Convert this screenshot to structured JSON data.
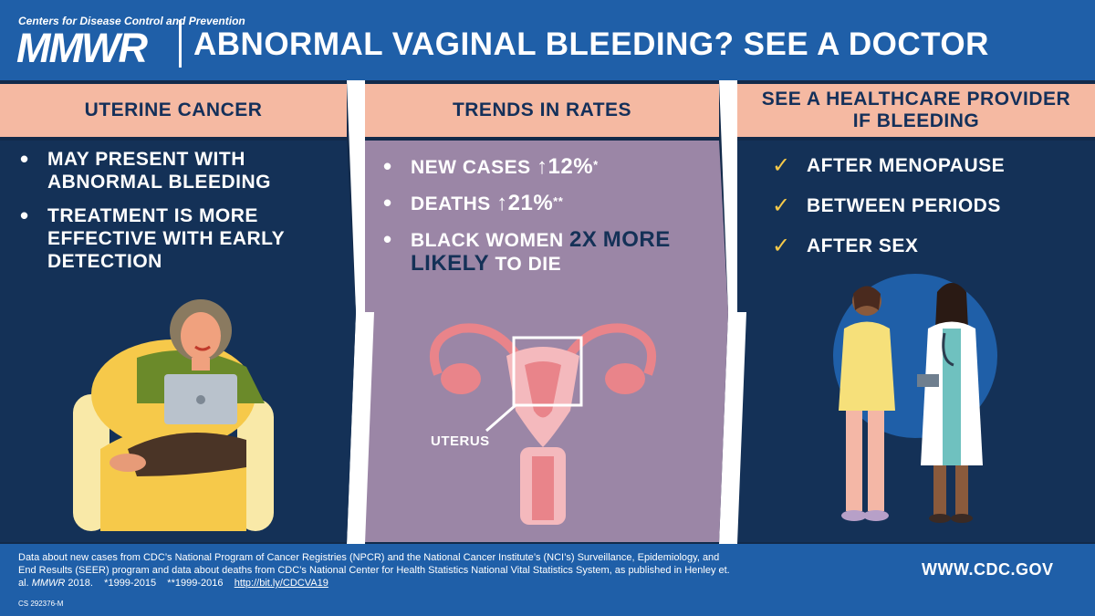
{
  "header": {
    "org": "Centers for Disease Control and Prevention",
    "logo": "MMWR",
    "title": "ABNORMAL VAGINAL BLEEDING? SEE A DOCTOR"
  },
  "panels": [
    {
      "heading": "UTERINE CANCER",
      "bullets": [
        "MAY PRESENT WITH ABNORMAL BLEEDING",
        "TREATMENT IS MORE EFFECTIVE WITH EARLY DETECTION"
      ]
    },
    {
      "heading": "TRENDS IN RATES",
      "bullets": [
        {
          "text": "NEW CASES",
          "arrow": "↑",
          "value": "12%",
          "note": "*"
        },
        {
          "text": "DEATHS",
          "arrow": "↑",
          "value": "21%",
          "note": "**"
        },
        {
          "text_a": "BLACK WOMEN",
          "emph_a": "2X",
          "emph_b": "MORE LIKELY",
          "text_b": "TO DIE"
        }
      ],
      "illustration_label": "UTERUS"
    },
    {
      "heading": "SEE A HEALTHCARE PROVIDER IF BLEEDING",
      "checks": [
        "AFTER MENOPAUSE",
        "BETWEEN PERIODS",
        "AFTER SEX"
      ]
    }
  ],
  "footer": {
    "source_1": "Data about new cases from CDC’s National Program of Cancer Registries (NPCR) and the National Cancer Institute’s (NCI’s) Surveillance, Epidemiology, and End Results (SEER) program and data about deaths from CDC’s National Center for Health Statistics National Vital Statistics System, as published in Henley et. al.",
    "source_journal": "MMWR",
    "source_2": "2018.",
    "note_1": "*1999-2015",
    "note_2": "**1999-2016",
    "link": "http://bit.ly/CDCVA19",
    "code": "CS 292376-M",
    "url": "WWW.CDC.GOV"
  },
  "icons": [
    "bullet-icon",
    "up-arrow-icon",
    "checkmark-icon",
    "woman-laptop-illustration",
    "uterus-illustration",
    "doctor-patient-illustration"
  ],
  "colors": {
    "header_blue": "#1f5fa8",
    "navy": "#143157",
    "peach": "#f5b9a2",
    "mauve": "#9b86a6",
    "check_yellow": "#f6c94a"
  }
}
